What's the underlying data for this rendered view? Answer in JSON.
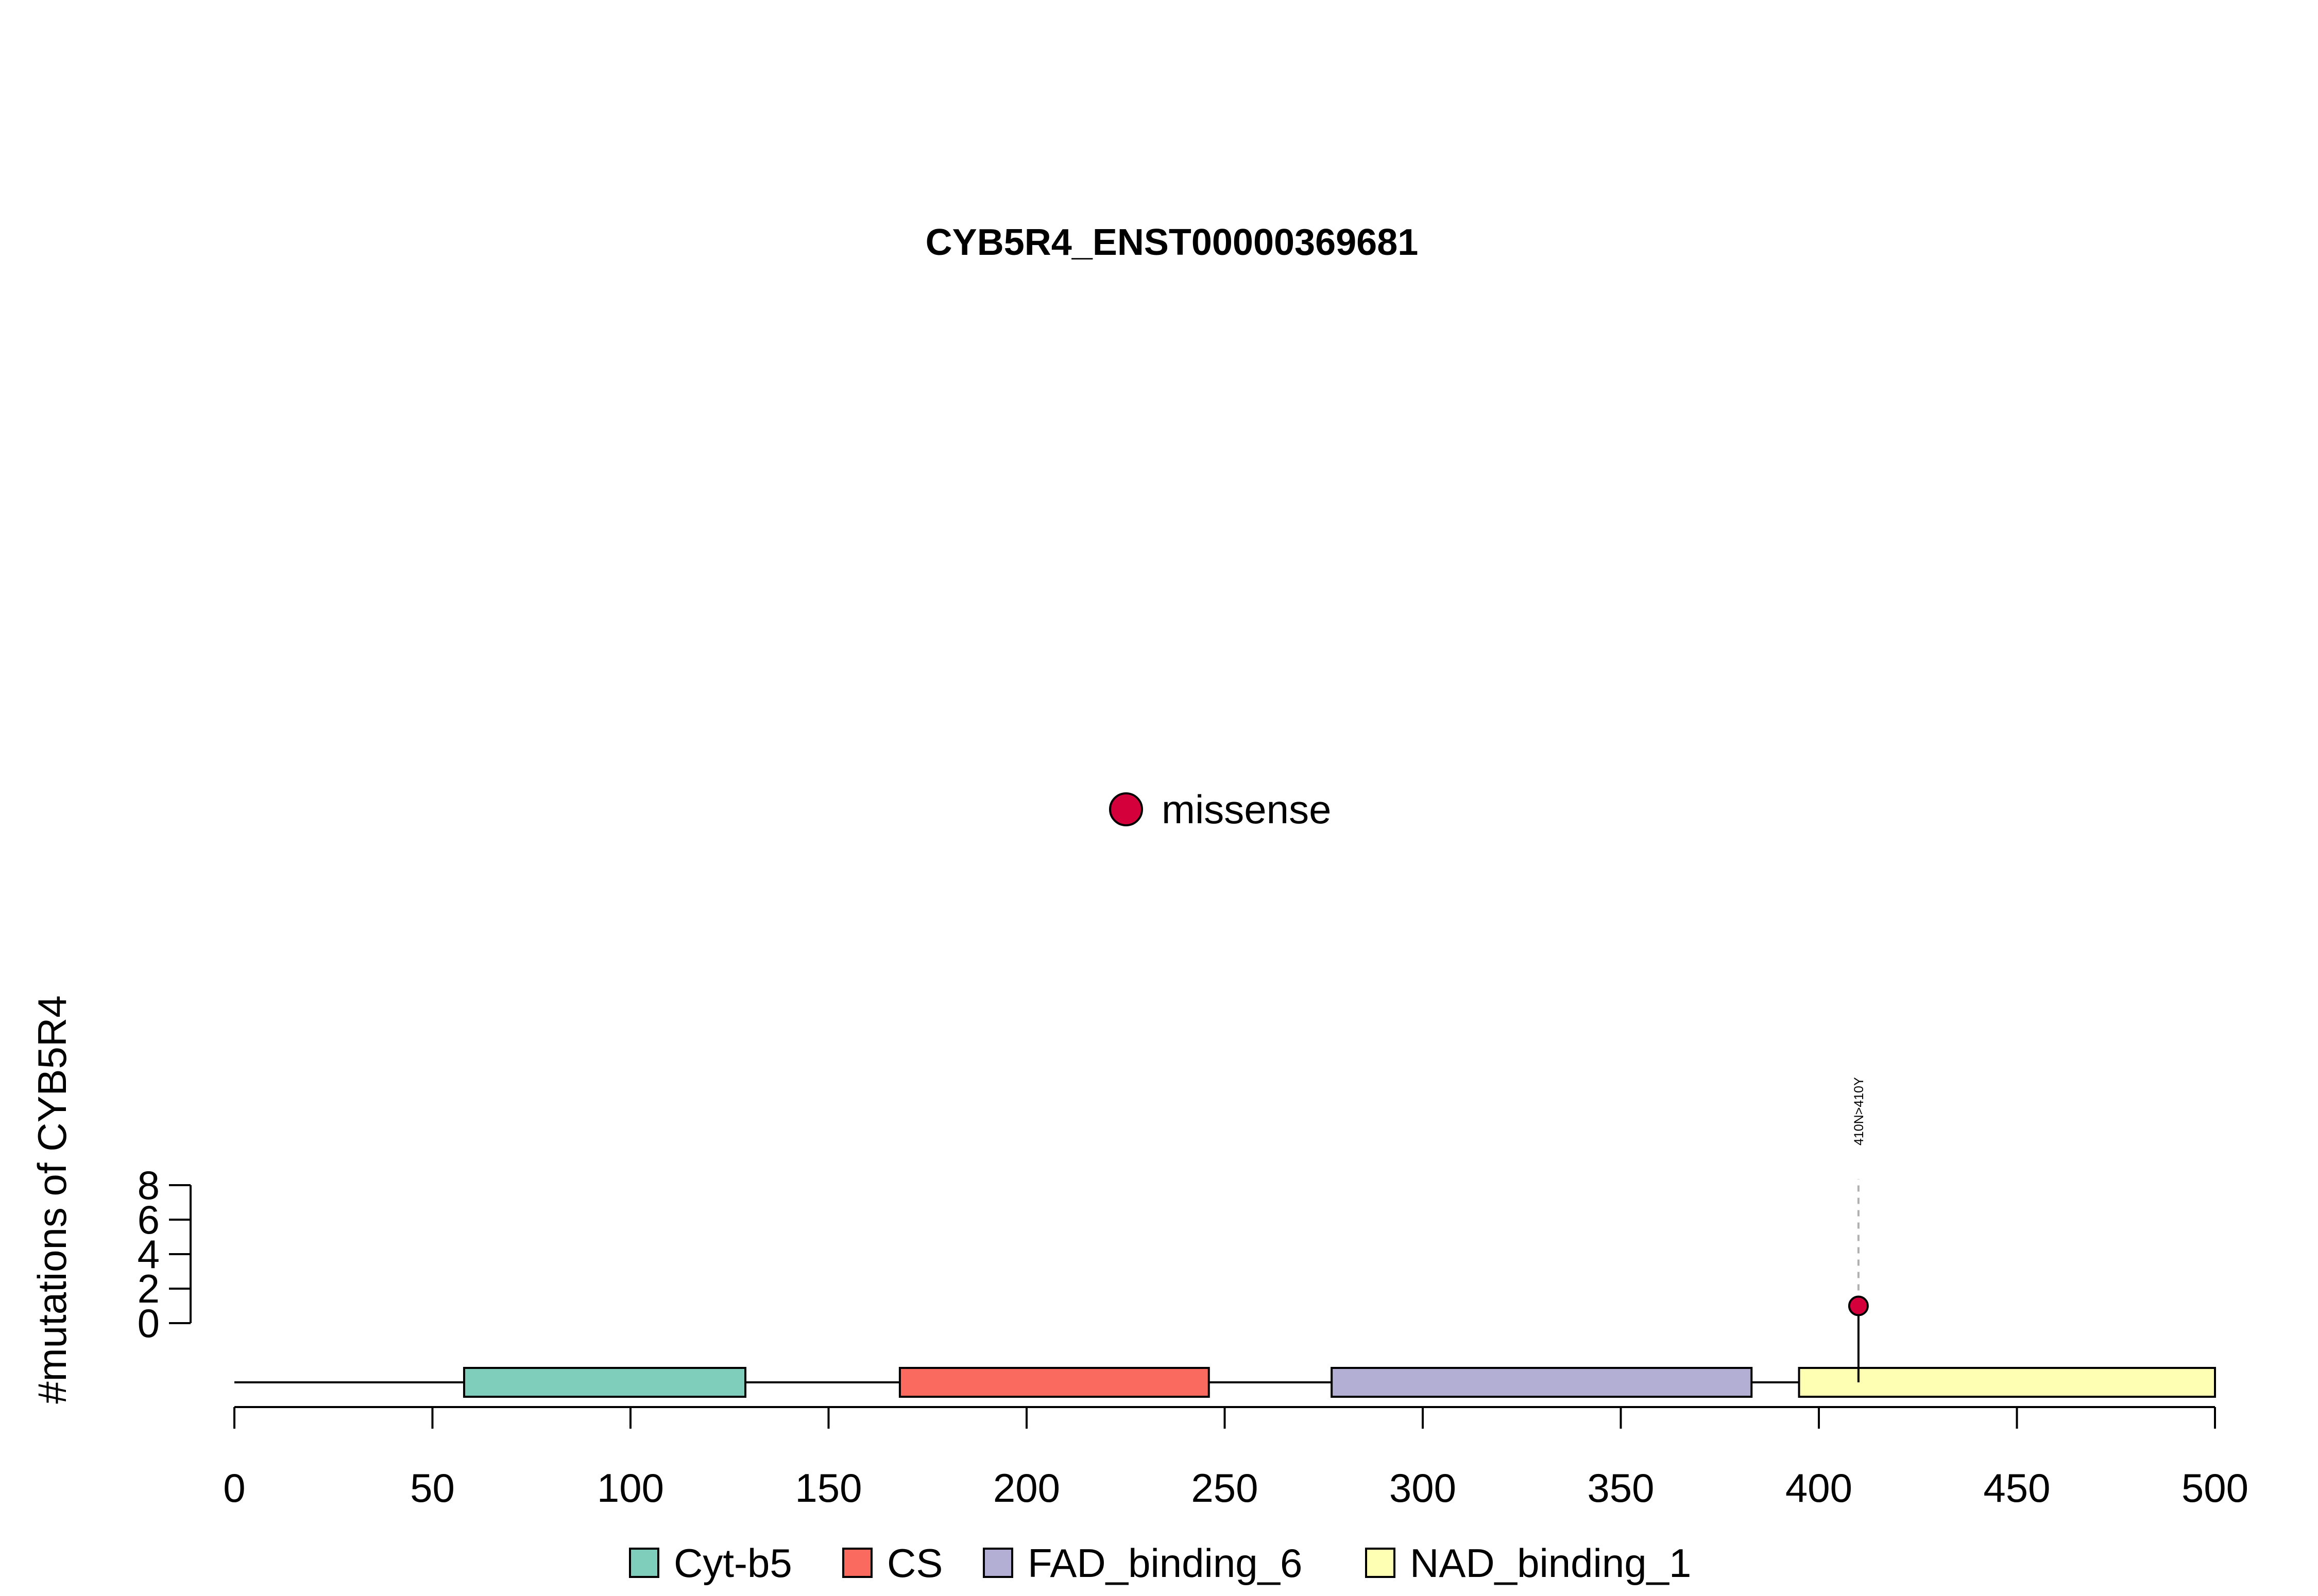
{
  "chart_data": {
    "type": "lollipop",
    "title": "CYB5R4_ENST00000369681",
    "ylabel": "#mutations of CYB5R4",
    "xlim": [
      0,
      500
    ],
    "x_ticks": [
      0,
      50,
      100,
      150,
      200,
      250,
      300,
      350,
      400,
      450,
      500
    ],
    "ylim": [
      0,
      8
    ],
    "y_ticks": [
      0,
      2,
      4,
      6,
      8
    ],
    "protein_length": 500,
    "domains": [
      {
        "name": "Cyt-b5",
        "start": 58,
        "end": 129,
        "color": "#7fcdbb"
      },
      {
        "name": "CS",
        "start": 168,
        "end": 246,
        "color": "#fb6a5f"
      },
      {
        "name": "FAD_binding_6",
        "start": 277,
        "end": 383,
        "color": "#b3aed4"
      },
      {
        "name": "NAD_binding_1",
        "start": 395,
        "end": 500,
        "color": "#ffffb3"
      }
    ],
    "mutations": [
      {
        "position": 410,
        "count": 1,
        "label": "410N>410Y",
        "type": "missense",
        "color": "#d4003c"
      }
    ],
    "mutation_legend": [
      {
        "name": "missense",
        "color": "#d4003c"
      }
    ],
    "domain_legend": [
      "Cyt-b5",
      "CS",
      "FAD_binding_6",
      "NAD_binding_1"
    ]
  }
}
